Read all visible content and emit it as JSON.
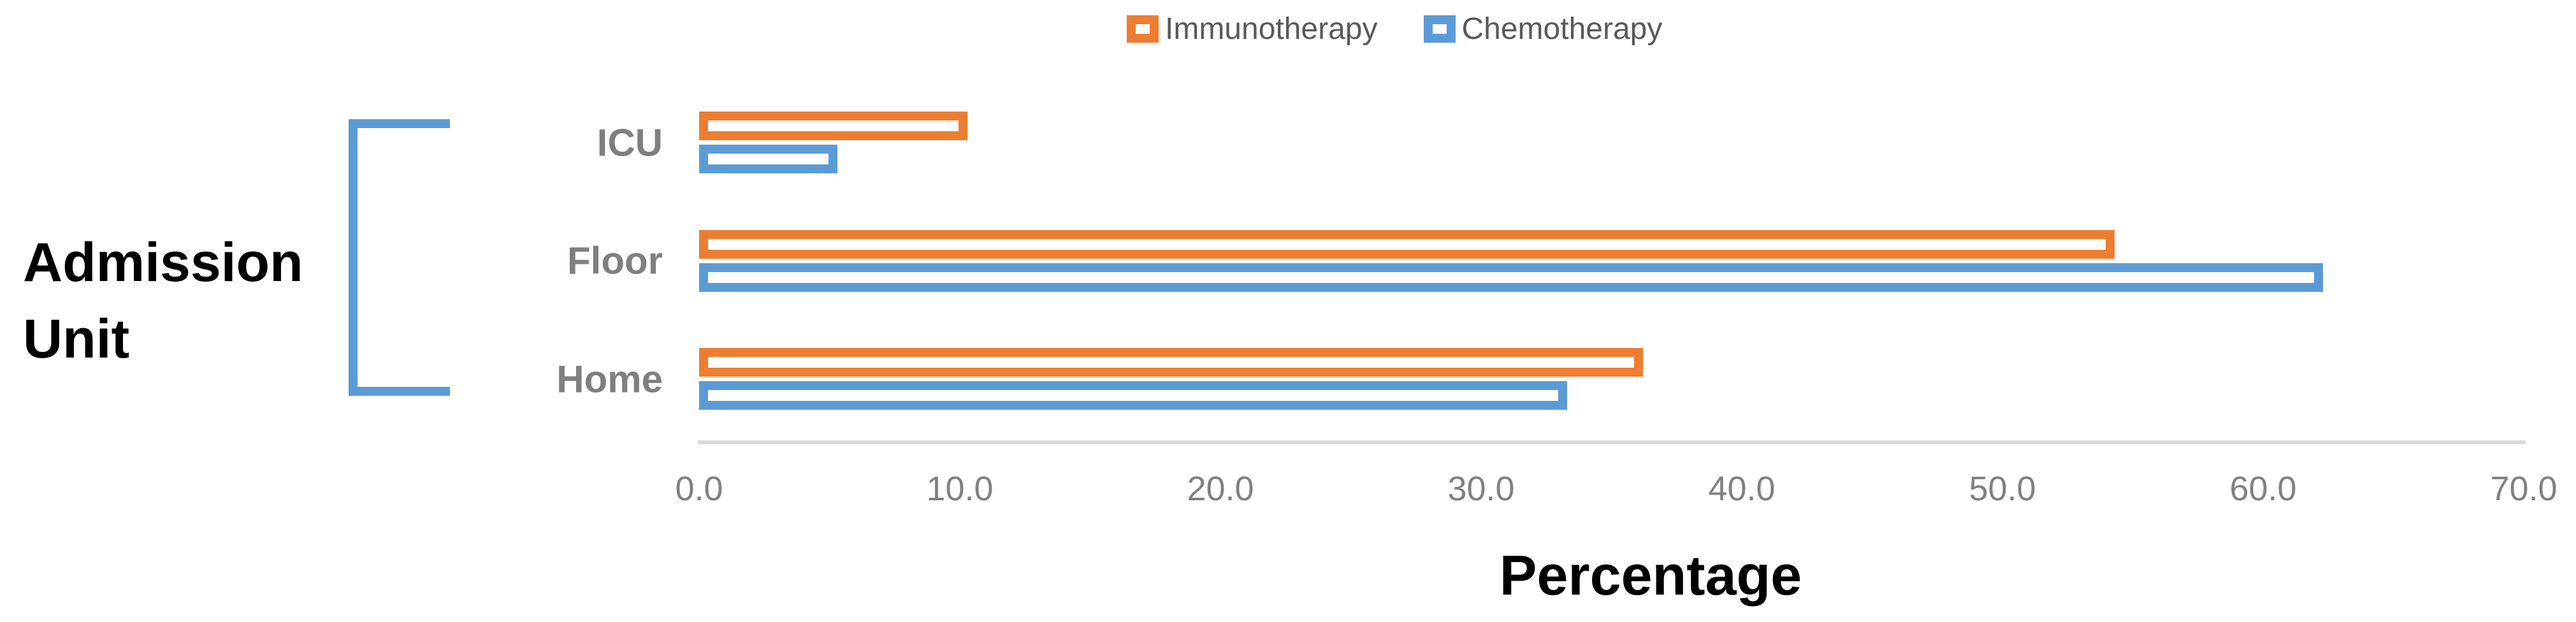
{
  "chart_data": {
    "type": "bar",
    "orientation": "horizontal",
    "title": "",
    "xlabel": "Percentage",
    "ylabel": "Admission Unit",
    "categories": [
      "ICU",
      "Floor",
      "Home"
    ],
    "series": [
      {
        "name": "Immunotherapy",
        "color": "#ED7D31",
        "values": [
          10.3,
          54.3,
          36.2
        ]
      },
      {
        "name": "Chemotherapy",
        "color": "#5B9BD5",
        "values": [
          5.3,
          62.3,
          33.3
        ]
      }
    ],
    "xlim": [
      0,
      70
    ],
    "xticks": [
      0,
      10,
      20,
      30,
      40,
      50,
      60,
      70
    ],
    "x_tick_labels": [
      "0.0",
      "10.0",
      "20.0",
      "30.0",
      "40.0",
      "50.0",
      "60.0",
      "70.0"
    ],
    "legend_position": "top-center",
    "grid": false,
    "bar_style": "hollow bars: white fill with thick colored outline",
    "axis_line_color": "#D9D9D9",
    "category_label_color": "#7F7F7F",
    "tick_label_color": "#808080",
    "legend_text_color": "#595959",
    "bracket_color": "#5B9BD5"
  }
}
